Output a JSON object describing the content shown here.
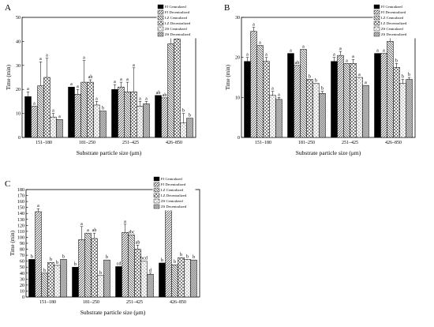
{
  "colors": {
    "ink": "#000000",
    "background": "#ffffff",
    "bar_fills": [
      "#000000",
      "url(#p-diag)",
      "url(#p-back)",
      "url(#p-cross)",
      "url(#p-dots)",
      "url(#p-check)"
    ]
  },
  "chart_data": [
    {
      "type": "bar",
      "panel": "A",
      "categories": [
        "151–180",
        "181–250",
        "251–425",
        "426–850"
      ],
      "xlabel": "Substrate particle size (μm)",
      "ylabel": "Time (min)",
      "ylim": [
        0,
        50
      ],
      "yticks": [
        0,
        10,
        20,
        30,
        40,
        50
      ],
      "legend_position": "top-right",
      "series": [
        {
          "name": "FJ Centralized",
          "values": [
            17,
            21,
            20,
            17.5
          ],
          "errors": [
            2,
            0,
            2,
            0
          ],
          "letters": [
            "a",
            "a",
            "a",
            "ab"
          ]
        },
        {
          "name": "FJ Decentralized",
          "values": [
            13,
            18,
            21,
            16.5
          ],
          "errors": [
            0,
            2,
            2,
            0
          ],
          "letters": [
            "a",
            "a",
            "a",
            "ab"
          ]
        },
        {
          "name": "LZ Centralized",
          "values": [
            21.5,
            23,
            19,
            39
          ],
          "errors": [
            10,
            9,
            4,
            5
          ],
          "letters": [
            "a",
            "a",
            "a",
            "a"
          ]
        },
        {
          "name": "LZ Decentralized",
          "values": [
            25,
            23,
            19,
            41
          ],
          "errors": [
            8,
            1,
            10,
            2
          ],
          "letters": [
            "a",
            "ab",
            "a",
            "a"
          ]
        },
        {
          "name": "ZS Centralized",
          "values": [
            8.5,
            13.5,
            13,
            6
          ],
          "errors": [
            1.5,
            1.5,
            2,
            4
          ],
          "letters": [
            "a",
            "a",
            "a",
            "b"
          ]
        },
        {
          "name": "ZS Decentralized",
          "values": [
            7.5,
            11,
            14,
            8
          ],
          "errors": [
            0,
            0,
            1,
            0
          ],
          "letters": [
            "a",
            "b",
            "a",
            "b"
          ]
        }
      ]
    },
    {
      "type": "bar",
      "panel": "B",
      "categories": [
        "151–180",
        "181–250",
        "251–425",
        "426–850"
      ],
      "xlabel": "Substrate particle size (μm)",
      "ylabel": "Time (min)",
      "ylim": [
        0,
        30
      ],
      "yticks": [
        0,
        10,
        20,
        30
      ],
      "legend_position": "top-right",
      "series": [
        {
          "name": "FJ Centralized",
          "values": [
            19,
            21,
            19,
            21
          ],
          "errors": [
            1,
            0,
            1,
            0
          ],
          "letters": [
            "a",
            "a",
            "a",
            "a"
          ]
        },
        {
          "name": "FJ Decentralized",
          "values": [
            26.5,
            18,
            20.5,
            21
          ],
          "errors": [
            1,
            0,
            1,
            0
          ],
          "letters": [
            "a",
            "ab",
            "a",
            "a"
          ]
        },
        {
          "name": "LZ Centralized",
          "values": [
            23,
            22,
            18.5,
            24
          ],
          "errors": [
            0,
            0,
            0,
            1
          ],
          "letters": [
            "a",
            "a",
            "a",
            "ab"
          ]
        },
        {
          "name": "LZ Decentralized",
          "values": [
            19,
            14.5,
            18.5,
            17.5
          ],
          "errors": [
            1,
            0,
            1,
            1
          ],
          "letters": [
            "a",
            "b",
            "a",
            "b"
          ]
        },
        {
          "name": "ZS Centralized",
          "values": [
            10.5,
            13.5,
            15,
            13.5
          ],
          "errors": [
            1,
            0,
            0,
            1
          ],
          "letters": [
            "a",
            "b",
            "a",
            "b"
          ]
        },
        {
          "name": "ZS Decentralized",
          "values": [
            9.5,
            11,
            13,
            14.5
          ],
          "errors": [
            0.5,
            0.5,
            0,
            0.5
          ],
          "letters": [
            "a",
            "b",
            "a",
            "b"
          ]
        }
      ]
    },
    {
      "type": "bar",
      "panel": "C",
      "categories": [
        "151–180",
        "181–250",
        "251–425",
        "426–850"
      ],
      "xlabel": "Substrate particle size (μm)",
      "ylabel": "Time (min)",
      "ylim": [
        0,
        180
      ],
      "yticks": [
        0,
        10,
        20,
        30,
        40,
        50,
        60,
        70,
        80,
        90,
        100,
        110,
        120,
        130,
        140,
        150,
        160,
        170,
        180
      ],
      "legend_position": "top-right",
      "series": [
        {
          "name": "FJ Centralized",
          "values": [
            63,
            50,
            51,
            57
          ],
          "errors": [
            0,
            0,
            0,
            0
          ],
          "letters": [
            "b",
            "b",
            "cd",
            "b"
          ]
        },
        {
          "name": "FJ Decentralized",
          "values": [
            143,
            96,
            108,
            148
          ],
          "errors": [
            5,
            22,
            14,
            15
          ],
          "letters": [
            "a",
            "a",
            "a",
            "a"
          ]
        },
        {
          "name": "LZ Centralized",
          "values": [
            40,
            107,
            104,
            54
          ],
          "errors": [
            0,
            0,
            0,
            0
          ],
          "letters": [
            "b",
            "a",
            "abc",
            "b"
          ]
        },
        {
          "name": "LZ Decentralized",
          "values": [
            58,
            98,
            80,
            66
          ],
          "errors": [
            0,
            9,
            7,
            0
          ],
          "letters": [
            "b",
            "ab",
            "ab",
            "b"
          ]
        },
        {
          "name": "ZS Centralized",
          "values": [
            53,
            36,
            60,
            63
          ],
          "errors": [
            0,
            0,
            0,
            0
          ],
          "letters": [
            "b",
            "b",
            "bcd",
            "b"
          ]
        },
        {
          "name": "ZS Decentralized",
          "values": [
            63,
            62,
            38,
            62
          ],
          "errors": [
            0,
            0,
            2,
            0
          ],
          "letters": [
            "b",
            "b",
            "d",
            "b"
          ]
        }
      ]
    }
  ]
}
